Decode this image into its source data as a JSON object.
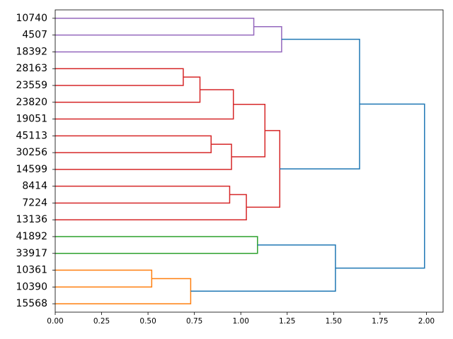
{
  "chart_data": {
    "type": "dendrogram",
    "orientation": "horizontal",
    "title": "",
    "xlabel": "",
    "ylabel": "",
    "xlim": [
      0,
      2.09
    ],
    "xticks": [
      0.0,
      0.25,
      0.5,
      0.75,
      1.0,
      1.25,
      1.5,
      1.75,
      2.0
    ],
    "xtick_labels": [
      "0.00",
      "0.25",
      "0.50",
      "0.75",
      "1.00",
      "1.25",
      "1.50",
      "1.75",
      "2.00"
    ],
    "grid": false,
    "leaves": [
      "10740",
      "4507",
      "18392",
      "28163",
      "23559",
      "23820",
      "19051",
      "45113",
      "30256",
      "14599",
      "8414",
      "7224",
      "13136",
      "41892",
      "33917",
      "10361",
      "10390",
      "15568"
    ],
    "colors": {
      "purple": "#9467bd",
      "red": "#d62728",
      "green": "#2ca02c",
      "orange": "#ff7f0e",
      "above": "#1f77b4"
    },
    "merges": [
      {
        "id": "m1",
        "a": "L0",
        "b": "L1",
        "distance": 1.07,
        "color": "purple"
      },
      {
        "id": "m2",
        "a": "m1",
        "b": "L2",
        "distance": 1.22,
        "color": "purple"
      },
      {
        "id": "m3",
        "a": "L3",
        "b": "L4",
        "distance": 0.69,
        "color": "red"
      },
      {
        "id": "m4",
        "a": "m3",
        "b": "L5",
        "distance": 0.78,
        "color": "red"
      },
      {
        "id": "m5",
        "a": "m4",
        "b": "L6",
        "distance": 0.96,
        "color": "red"
      },
      {
        "id": "m6",
        "a": "L7",
        "b": "L8",
        "distance": 0.84,
        "color": "red"
      },
      {
        "id": "m7",
        "a": "m6",
        "b": "L9",
        "distance": 0.95,
        "color": "red"
      },
      {
        "id": "m8",
        "a": "m5",
        "b": "m7",
        "distance": 1.13,
        "color": "red"
      },
      {
        "id": "m9",
        "a": "L10",
        "b": "L11",
        "distance": 0.94,
        "color": "red"
      },
      {
        "id": "m10",
        "a": "m9",
        "b": "L12",
        "distance": 1.03,
        "color": "red"
      },
      {
        "id": "m11",
        "a": "m8",
        "b": "m10",
        "distance": 1.21,
        "color": "red"
      },
      {
        "id": "m12",
        "a": "m2",
        "b": "m11",
        "distance": 1.64,
        "color": "above"
      },
      {
        "id": "m13",
        "a": "L13",
        "b": "L14",
        "distance": 1.09,
        "color": "green"
      },
      {
        "id": "m14",
        "a": "L15",
        "b": "L16",
        "distance": 0.52,
        "color": "orange"
      },
      {
        "id": "m15",
        "a": "m14",
        "b": "L17",
        "distance": 0.73,
        "color": "orange"
      },
      {
        "id": "m16",
        "a": "m13",
        "b": "m15",
        "distance": 1.51,
        "color": "above"
      },
      {
        "id": "m17",
        "a": "m12",
        "b": "m16",
        "distance": 1.99,
        "color": "above"
      }
    ]
  }
}
